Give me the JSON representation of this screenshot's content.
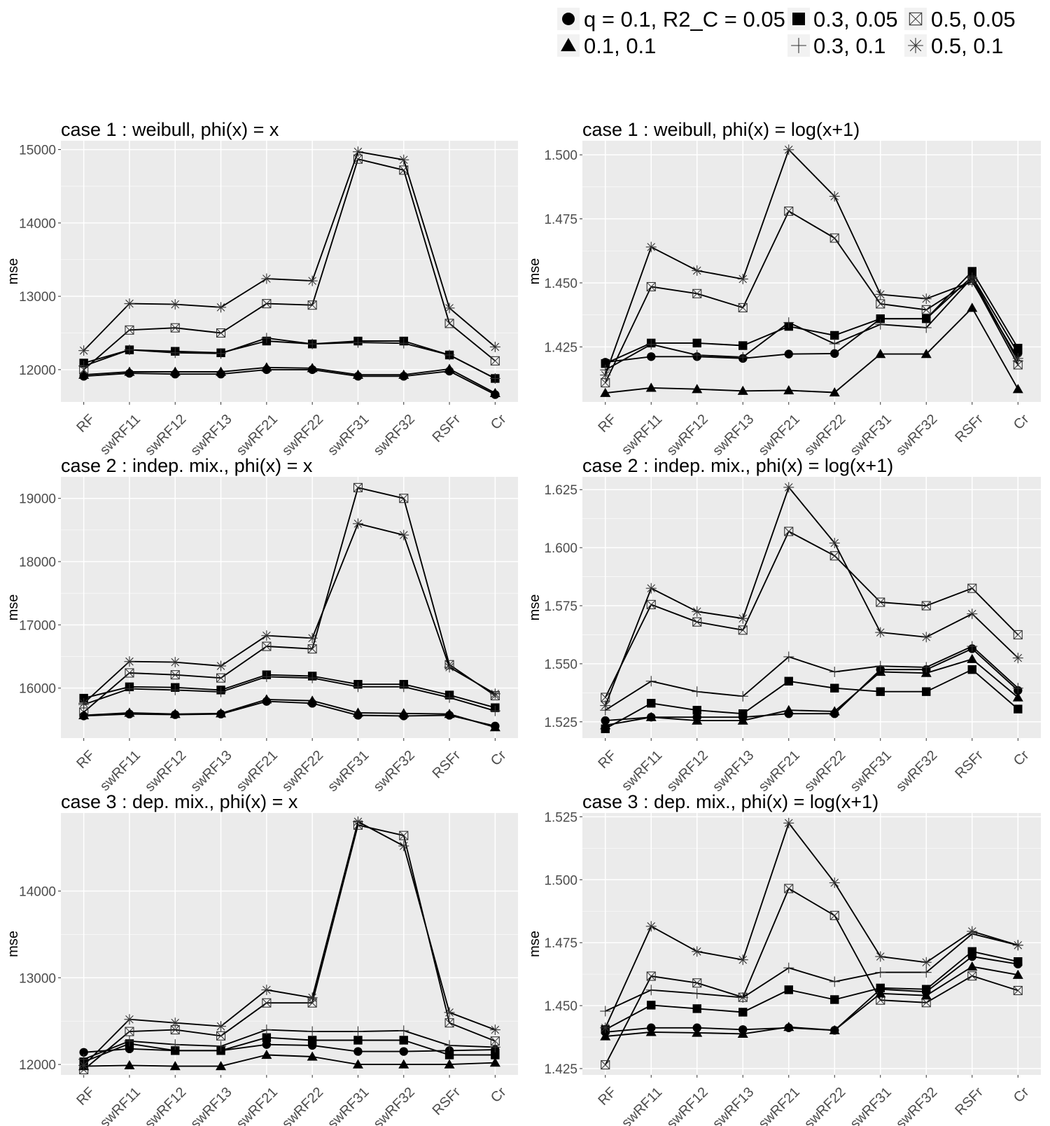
{
  "legend": [
    {
      "shape": "circle",
      "label": "q = 0.1, R2_C = 0.05"
    },
    {
      "shape": "square",
      "label": "0.3, 0.05"
    },
    {
      "shape": "boxx",
      "label": "0.5, 0.05"
    },
    {
      "shape": "triangle",
      "label": "0.1, 0.1"
    },
    {
      "shape": "plus",
      "label": "0.3, 0.1"
    },
    {
      "shape": "star",
      "label": "0.5, 0.1"
    }
  ],
  "colors": {
    "panel_bg": "#ebebeb",
    "grid": "#ffffff",
    "line": "#000000",
    "tick_text": "#4d4d4d",
    "legend_key_bg": "#f2f2f2"
  },
  "chart_data": [
    {
      "type": "line",
      "title": "case 1 : weibull, phi(x) = x",
      "xlabel": "",
      "ylabel": "mse",
      "categories": [
        "RF",
        "swRF11",
        "swRF12",
        "swRF13",
        "swRF21",
        "swRF22",
        "swRF31",
        "swRF32",
        "RSFr",
        "Cr"
      ],
      "ylim": [
        11560,
        15120
      ],
      "yticks": [
        12000,
        13000,
        14000,
        15000
      ],
      "ytick_labels": [
        "12000",
        "13000",
        "14000",
        "15000"
      ],
      "series": [
        {
          "name": "q = 0.1, R2_C = 0.05",
          "values": [
            11910,
            11950,
            11940,
            11940,
            12000,
            12000,
            11910,
            11910,
            11980,
            11660
          ]
        },
        {
          "name": "0.3, 0.05",
          "values": [
            12090,
            12270,
            12250,
            12230,
            12390,
            12350,
            12390,
            12390,
            12200,
            11880
          ]
        },
        {
          "name": "0.5, 0.05",
          "values": [
            12000,
            12540,
            12570,
            12500,
            12900,
            12880,
            14870,
            14720,
            12630,
            12120
          ]
        },
        {
          "name": "0.1, 0.1",
          "values": [
            11930,
            11970,
            11970,
            11970,
            12030,
            12020,
            11930,
            11930,
            12010,
            11680
          ]
        },
        {
          "name": "0.3, 0.1",
          "values": [
            12050,
            12270,
            12230,
            12220,
            12430,
            12350,
            12370,
            12360,
            12200,
            11880
          ]
        },
        {
          "name": "0.5, 0.1",
          "values": [
            12260,
            12900,
            12890,
            12850,
            13240,
            13210,
            14970,
            14860,
            12840,
            12310
          ]
        }
      ]
    },
    {
      "type": "line",
      "title": "case 1 : weibull, phi(x) = log(x+1)",
      "xlabel": "",
      "ylabel": "mse",
      "categories": [
        "RF",
        "swRF11",
        "swRF12",
        "swRF13",
        "swRF21",
        "swRF22",
        "swRF31",
        "swRF32",
        "RSFr",
        "Cr"
      ],
      "ylim": [
        1.4035,
        1.5055
      ],
      "yticks": [
        1.425,
        1.45,
        1.475,
        1.5
      ],
      "ytick_labels": [
        "1.425",
        "1.450",
        "1.475",
        "1.500"
      ],
      "series": [
        {
          "name": "q = 0.1, R2_C = 0.05",
          "values": [
            1.419,
            1.4212,
            1.4212,
            1.4205,
            1.4222,
            1.4224,
            1.436,
            1.436,
            1.4525,
            1.4225
          ]
        },
        {
          "name": "0.3, 0.05",
          "values": [
            1.4185,
            1.4265,
            1.4265,
            1.4255,
            1.433,
            1.4295,
            1.436,
            1.436,
            1.4545,
            1.4245
          ]
        },
        {
          "name": "0.5, 0.05",
          "values": [
            1.411,
            1.4485,
            1.4458,
            1.4403,
            1.478,
            1.4675,
            1.4418,
            1.4395,
            1.451,
            1.418
          ]
        },
        {
          "name": "0.1, 0.1",
          "values": [
            1.407,
            1.409,
            1.4085,
            1.4078,
            1.408,
            1.4072,
            1.4222,
            1.4222,
            1.4402,
            1.4085
          ]
        },
        {
          "name": "0.3, 0.1",
          "values": [
            1.416,
            1.426,
            1.4218,
            1.421,
            1.4345,
            1.4262,
            1.4338,
            1.4325,
            1.452,
            1.4195
          ]
        },
        {
          "name": "0.5, 0.1",
          "values": [
            1.414,
            1.464,
            1.4548,
            1.4515,
            1.502,
            1.4838,
            1.4455,
            1.4438,
            1.4505,
            1.4205
          ]
        }
      ]
    },
    {
      "type": "line",
      "title": "case 2 : indep. mix., phi(x) = x",
      "xlabel": "",
      "ylabel": "mse",
      "categories": [
        "RF",
        "swRF11",
        "swRF12",
        "swRF13",
        "swRF21",
        "swRF22",
        "swRF31",
        "swRF32",
        "RSFr",
        "Cr"
      ],
      "ylim": [
        15210,
        19340
      ],
      "yticks": [
        16000,
        17000,
        18000,
        19000
      ],
      "ytick_labels": [
        "16000",
        "17000",
        "18000",
        "19000"
      ],
      "series": [
        {
          "name": "q = 0.1, R2_C = 0.05",
          "values": [
            15560,
            15590,
            15580,
            15590,
            15790,
            15760,
            15570,
            15560,
            15570,
            15400
          ]
        },
        {
          "name": "0.3, 0.05",
          "values": [
            15840,
            16020,
            16010,
            15970,
            16210,
            16190,
            16060,
            16060,
            15890,
            15690
          ]
        },
        {
          "name": "0.5, 0.05",
          "values": [
            15620,
            16240,
            16210,
            16160,
            16660,
            16620,
            19170,
            19000,
            16370,
            15880
          ]
        },
        {
          "name": "0.1, 0.1",
          "values": [
            15570,
            15610,
            15590,
            15600,
            15820,
            15800,
            15610,
            15600,
            15590,
            15380
          ]
        },
        {
          "name": "0.3, 0.1",
          "values": [
            15740,
            15990,
            15970,
            15940,
            16180,
            16160,
            16020,
            16020,
            15850,
            15640
          ]
        },
        {
          "name": "0.5, 0.1",
          "values": [
            15760,
            16420,
            16410,
            16350,
            16830,
            16790,
            18600,
            18420,
            16330,
            15910
          ]
        }
      ]
    },
    {
      "type": "line",
      "title": "case 2 : indep. mix., phi(x) = log(x+1)",
      "xlabel": "",
      "ylabel": "mse",
      "categories": [
        "RF",
        "swRF11",
        "swRF12",
        "swRF13",
        "swRF21",
        "swRF22",
        "swRF31",
        "swRF32",
        "RSFr",
        "Cr"
      ],
      "ylim": [
        1.518,
        1.6305
      ],
      "yticks": [
        1.525,
        1.55,
        1.575,
        1.6,
        1.625
      ],
      "ytick_labels": [
        "1.525",
        "1.550",
        "1.575",
        "1.600",
        "1.625"
      ],
      "series": [
        {
          "name": "q = 0.1, R2_C = 0.05",
          "values": [
            1.5255,
            1.527,
            1.527,
            1.527,
            1.5285,
            1.5285,
            1.5475,
            1.5475,
            1.5565,
            1.5385
          ]
        },
        {
          "name": "0.3, 0.05",
          "values": [
            1.522,
            1.533,
            1.53,
            1.5285,
            1.5425,
            1.5395,
            1.538,
            1.538,
            1.5475,
            1.5305
          ]
        },
        {
          "name": "0.5, 0.05",
          "values": [
            1.5355,
            1.5755,
            1.568,
            1.5645,
            1.607,
            1.5965,
            1.5765,
            1.575,
            1.5825,
            1.5625
          ]
        },
        {
          "name": "0.1, 0.1",
          "values": [
            1.5235,
            1.527,
            1.5255,
            1.5255,
            1.53,
            1.5295,
            1.5465,
            1.546,
            1.552,
            1.5355
          ]
        },
        {
          "name": "0.3, 0.1",
          "values": [
            1.53,
            1.5425,
            1.538,
            1.536,
            1.553,
            1.5465,
            1.549,
            1.5485,
            1.5575,
            1.5395
          ]
        },
        {
          "name": "0.5, 0.1",
          "values": [
            1.532,
            1.5825,
            1.5725,
            1.5695,
            1.626,
            1.602,
            1.5635,
            1.5615,
            1.5715,
            1.5525
          ]
        }
      ]
    },
    {
      "type": "line",
      "title": "case 3 : dep. mix., phi(x) = x",
      "xlabel": "",
      "ylabel": "mse",
      "categories": [
        "RF",
        "swRF11",
        "swRF12",
        "swRF13",
        "swRF21",
        "swRF22",
        "swRF31",
        "swRF32",
        "RSFr",
        "Cr"
      ],
      "ylim": [
        11880,
        14900
      ],
      "yticks": [
        12000,
        13000,
        14000
      ],
      "ytick_labels": [
        "12000",
        "13000",
        "14000"
      ],
      "series": [
        {
          "name": "q = 0.1, R2_C = 0.05",
          "values": [
            12140,
            12180,
            12160,
            12160,
            12230,
            12220,
            12150,
            12150,
            12160,
            12170
          ]
        },
        {
          "name": "0.3, 0.05",
          "values": [
            12030,
            12240,
            12160,
            12160,
            12310,
            12280,
            12280,
            12280,
            12110,
            12110
          ]
        },
        {
          "name": "0.5, 0.05",
          "values": [
            11940,
            12380,
            12400,
            12330,
            12710,
            12710,
            14760,
            14640,
            12480,
            12270
          ]
        },
        {
          "name": "0.1, 0.1",
          "values": [
            11980,
            11990,
            11980,
            11980,
            12110,
            12090,
            12000,
            12000,
            12000,
            12020
          ]
        },
        {
          "name": "0.3, 0.1",
          "values": [
            12060,
            12270,
            12230,
            12210,
            12400,
            12380,
            12380,
            12390,
            12220,
            12200
          ]
        },
        {
          "name": "0.5, 0.1",
          "values": [
            11990,
            12520,
            12480,
            12440,
            12860,
            12770,
            14800,
            14520,
            12600,
            12400
          ]
        }
      ]
    },
    {
      "type": "line",
      "title": "case 3 : dep. mix., phi(x) = log(x+1)",
      "xlabel": "",
      "ylabel": "mse",
      "categories": [
        "RF",
        "swRF11",
        "swRF12",
        "swRF13",
        "swRF21",
        "swRF22",
        "swRF31",
        "swRF32",
        "RSFr",
        "Cr"
      ],
      "ylim": [
        1.4225,
        1.5265
      ],
      "yticks": [
        1.425,
        1.45,
        1.475,
        1.5,
        1.525
      ],
      "ytick_labels": [
        "1.425",
        "1.450",
        "1.475",
        "1.500",
        "1.525"
      ],
      "series": [
        {
          "name": "q = 0.1, R2_C = 0.05",
          "values": [
            1.4395,
            1.4412,
            1.4412,
            1.4405,
            1.4412,
            1.4402,
            1.4565,
            1.4555,
            1.4695,
            1.4665
          ]
        },
        {
          "name": "0.3, 0.05",
          "values": [
            1.4405,
            1.4502,
            1.4488,
            1.4474,
            1.4563,
            1.4524,
            1.457,
            1.4565,
            1.4715,
            1.4675
          ]
        },
        {
          "name": "0.5, 0.05",
          "values": [
            1.4265,
            1.4617,
            1.459,
            1.4533,
            1.4965,
            1.4858,
            1.4522,
            1.4512,
            1.4618,
            1.456
          ]
        },
        {
          "name": "0.1, 0.1",
          "values": [
            1.4378,
            1.4395,
            1.4392,
            1.4388,
            1.4415,
            1.4402,
            1.4548,
            1.454,
            1.4655,
            1.4622
          ]
        },
        {
          "name": "0.3, 0.1",
          "values": [
            1.4478,
            1.4562,
            1.4548,
            1.4532,
            1.465,
            1.4595,
            1.4632,
            1.4632,
            1.4785,
            1.474
          ]
        },
        {
          "name": "0.5, 0.1",
          "values": [
            1.4412,
            1.4815,
            1.4715,
            1.4682,
            1.5225,
            1.4988,
            1.4695,
            1.4672,
            1.4795,
            1.474
          ]
        }
      ]
    }
  ]
}
